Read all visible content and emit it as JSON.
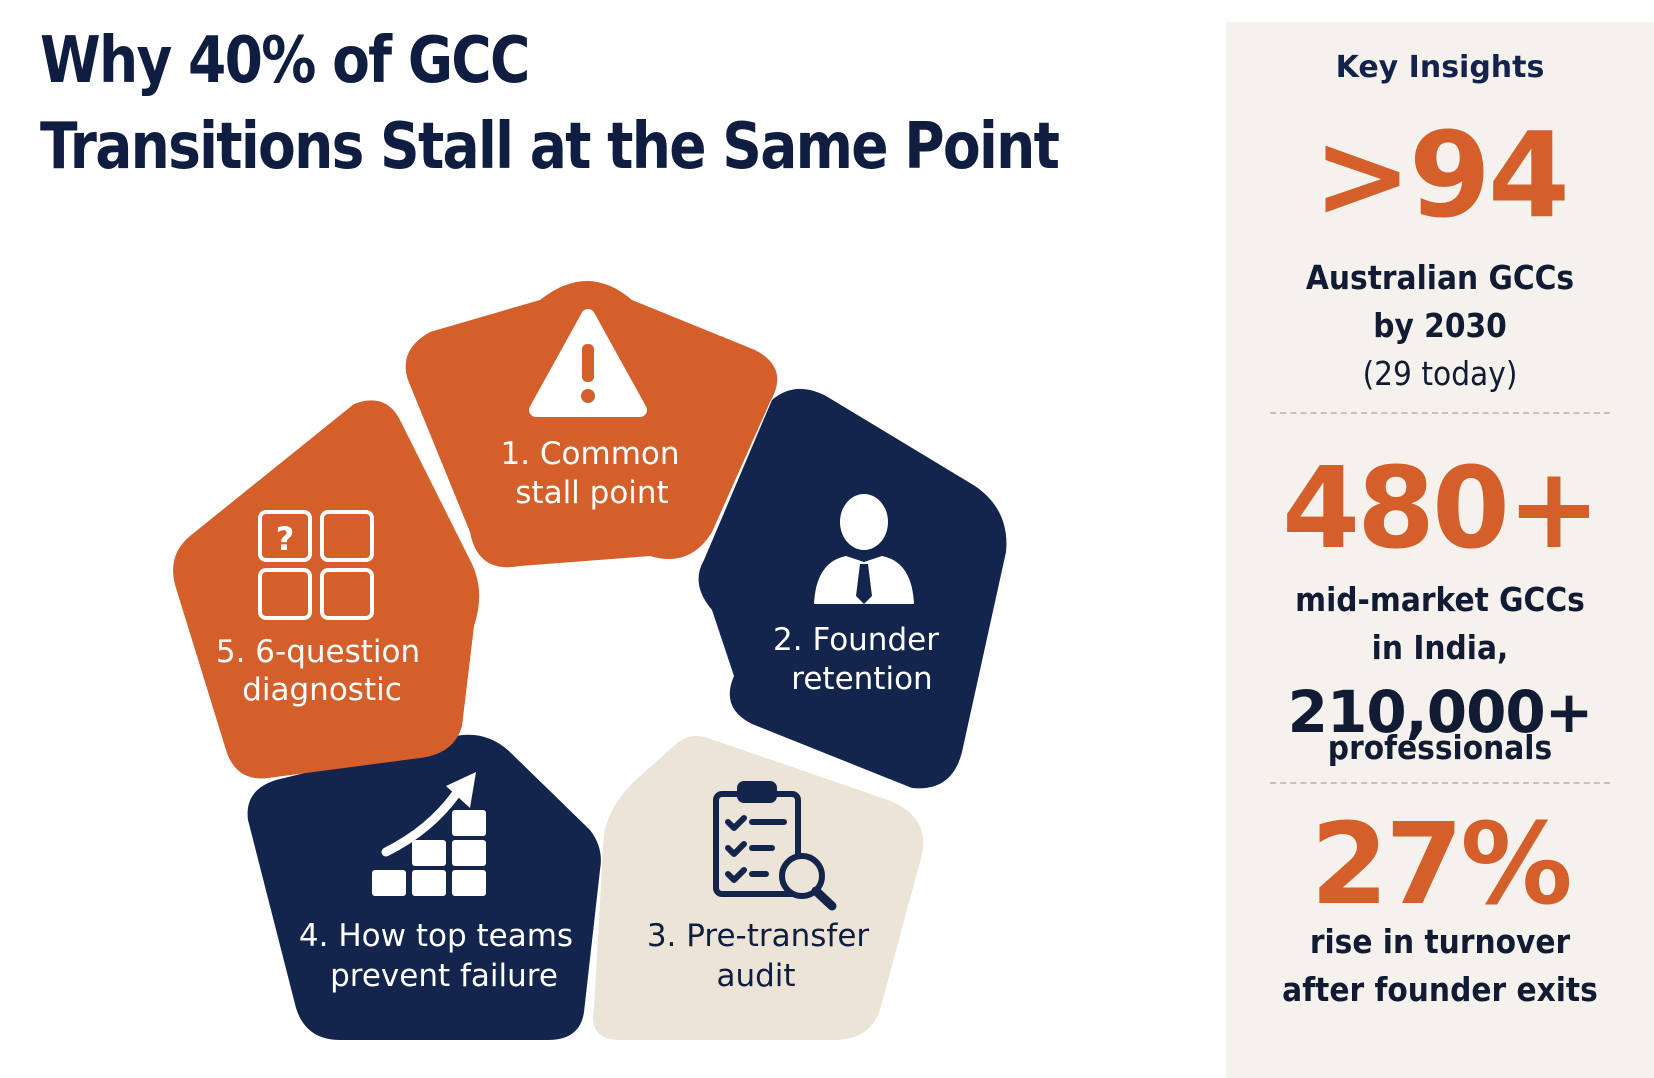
{
  "title": {
    "line1": "Why 40% of GCC",
    "line2": "Transitions Stall at the Same Point"
  },
  "segments": [
    {
      "label_line1": "1. Common",
      "label_line2": "stall point",
      "icon": "warning-icon",
      "color": "#d45f2b"
    },
    {
      "label_line1": "2. Founder",
      "label_line2": "retention",
      "icon": "businessman-icon",
      "color": "#13254d"
    },
    {
      "label_line1": "3. Pre-transfer",
      "label_line2": "audit",
      "icon": "clipboard-checklist-icon",
      "color": "#ece4d7"
    },
    {
      "label_line1": "4. How top teams",
      "label_line2": "prevent failure",
      "icon": "growth-arrow-icon",
      "color": "#13254d"
    },
    {
      "label_line1": "5. 6-question",
      "label_line2": "diagnostic",
      "icon": "question-grid-icon",
      "color": "#d45f2b"
    }
  ],
  "sidebar": {
    "title": "Key Insights",
    "stat1": {
      "number": ">94",
      "line1": "Australian GCCs",
      "line2": "by 2030",
      "line3": "(29 today)"
    },
    "stat2": {
      "number": "480+",
      "line1": "mid-market GCCs",
      "line2": "in India,",
      "big": "210,000+",
      "line3": "professionals"
    },
    "stat3": {
      "number": "27%",
      "line1": "rise in turnover",
      "line2": "after founder exits"
    }
  },
  "colors": {
    "orange": "#d45f2b",
    "navy": "#13254d",
    "beige": "#ece4d7",
    "title": "#0f1d40"
  }
}
